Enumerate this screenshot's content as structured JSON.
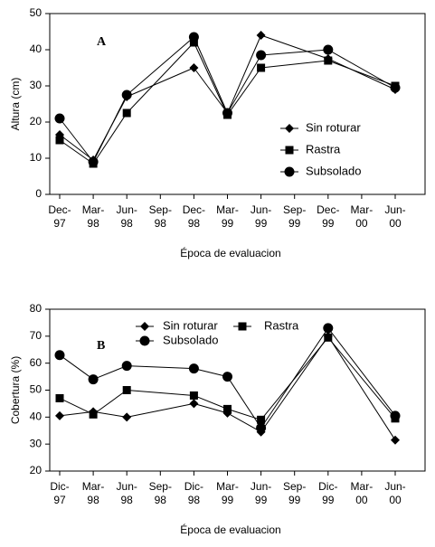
{
  "chart_data": [
    {
      "type": "line",
      "annotation": "A",
      "ylabel": "Altura (cm)",
      "xlabel": "Época de evaluacion",
      "categories": [
        "Dec-\n97",
        "Mar-\n98",
        "Jun-\n98",
        "Sep-\n98",
        "Dec-\n98",
        "Mar-\n99",
        "Jun-\n99",
        "Sep-\n99",
        "Dec-\n99",
        "Mar-\n00",
        "Jun-\n00"
      ],
      "ylim": [
        0,
        50
      ],
      "yticks": [
        0,
        10,
        20,
        30,
        40,
        50
      ],
      "legend": "right",
      "series": [
        {
          "name": "Sin roturar",
          "color": "#000000",
          "marker": "diamond",
          "values": [
            16.5,
            9.5,
            27,
            null,
            35,
            22.5,
            44,
            null,
            37.5,
            null,
            29
          ]
        },
        {
          "name": "Rastra",
          "color": "#000000",
          "marker": "square",
          "values": [
            15,
            8.5,
            22.5,
            null,
            42,
            22,
            35,
            null,
            37,
            null,
            30
          ]
        },
        {
          "name": "Subsolado",
          "color": "#000000",
          "marker": "circle",
          "values": [
            21,
            9,
            27.5,
            null,
            43.5,
            22.5,
            38.5,
            null,
            40,
            null,
            29.5
          ]
        }
      ]
    },
    {
      "type": "line",
      "annotation": "B",
      "ylabel": "Cobertura (%)",
      "xlabel": "Época de evaluacion",
      "categories": [
        "Dic-\n97",
        "Mar-\n98",
        "Jun-\n98",
        "Sep-\n98",
        "Dic-\n98",
        "Mar-\n99",
        "Jun-\n99",
        "Sep-\n99",
        "Dic-\n99",
        "Mar-\n00",
        "Jun-\n00"
      ],
      "ylim": [
        20,
        80
      ],
      "yticks": [
        20,
        30,
        40,
        50,
        60,
        70,
        80
      ],
      "legend": "top",
      "series": [
        {
          "name": "Sin roturar",
          "color": "#000000",
          "marker": "diamond",
          "values": [
            40.5,
            42,
            40,
            null,
            45,
            41.5,
            34.5,
            null,
            70,
            null,
            31.5
          ]
        },
        {
          "name": "Rastra",
          "color": "#000000",
          "marker": "square",
          "values": [
            47,
            41,
            50,
            null,
            48,
            43,
            39,
            null,
            69.5,
            null,
            39.5
          ]
        },
        {
          "name": "Subsolado",
          "color": "#000000",
          "marker": "circle",
          "values": [
            63,
            54,
            59,
            null,
            58,
            55,
            36,
            null,
            73,
            null,
            40.5
          ]
        }
      ]
    }
  ]
}
